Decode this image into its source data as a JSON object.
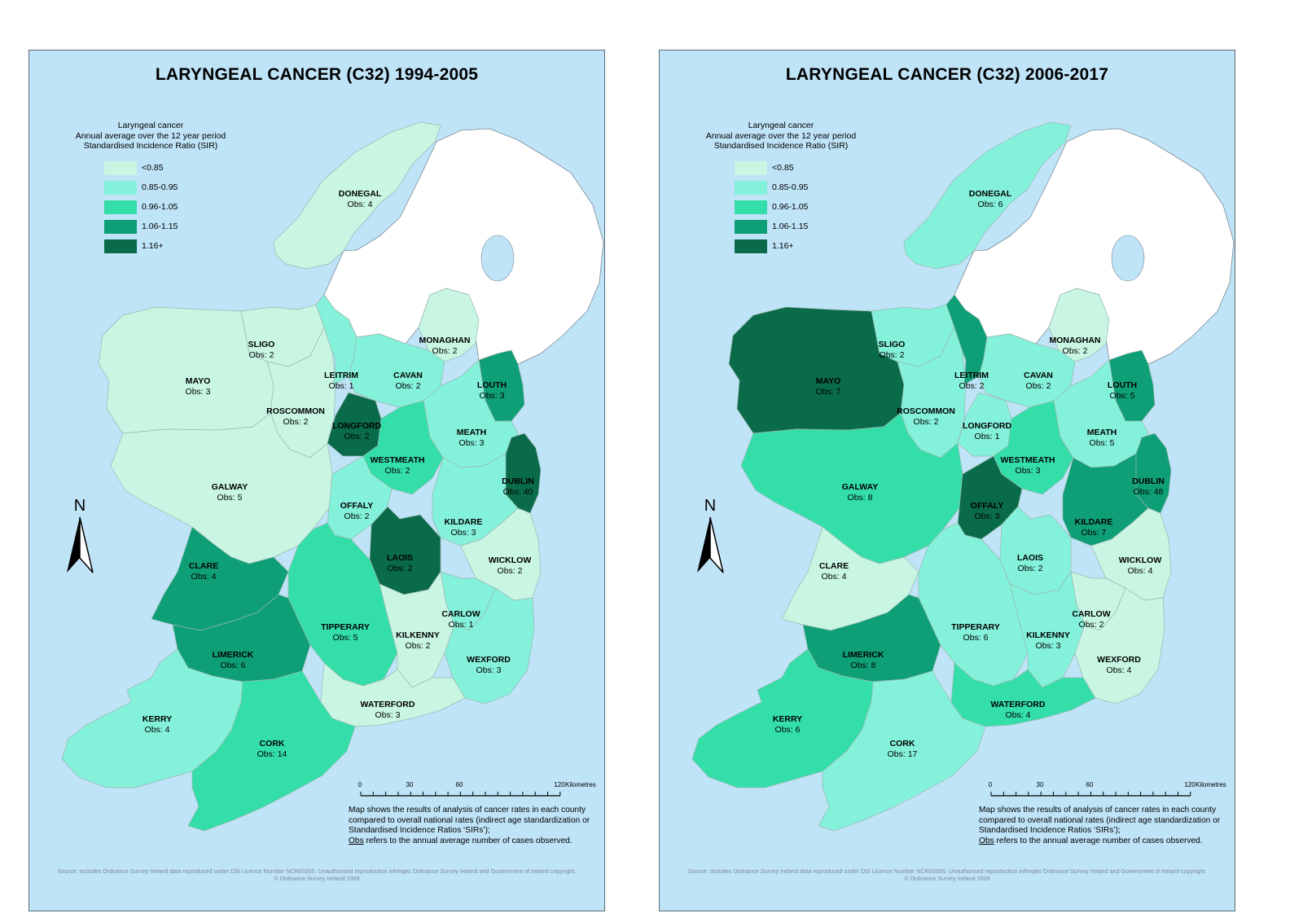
{
  "legend": {
    "heading": [
      "Laryngeal cancer",
      "Annual average over the 12 year period",
      "Standardised Incidence Ratio (SIR)"
    ],
    "classes": [
      {
        "label": "<0.85",
        "color": "#c8f6e3"
      },
      {
        "label": "0.85-0.95",
        "color": "#84f1da"
      },
      {
        "label": "0.96-1.05",
        "color": "#34dea9"
      },
      {
        "label": "1.06-1.15",
        "color": "#0f9f77"
      },
      {
        "label": "1.16+",
        "color": "#0a6b4b"
      }
    ]
  },
  "north_label": "N",
  "scale": {
    "ticks": [
      "0",
      "30",
      "60",
      "120"
    ],
    "unit": "Kilometres"
  },
  "note": {
    "text": "Map shows the results of analysis of cancer rates in each county compared to overall national rates (indirect age standardization or Standardised Incidence Ratios ‘SIRs’);",
    "obs_word": "Obs",
    "obs_rest": " refers to the annual average number of cases observed."
  },
  "source": [
    "Source: Includes Ordnance Survey Ireland data reproduced under OSi Licence Number NCRI/0305. Unauthorised reproduction infringes Ordnance Survey Ireland and Government of Ireland copyright.",
    "© Ordnance Survey Ireland 2009"
  ],
  "maps": [
    {
      "title": "LARYNGEAL CANCER (C32) 1994-2005",
      "counties": [
        {
          "name": "DONEGAL",
          "obs": "Obs: 4",
          "cls": 0
        },
        {
          "name": "SLIGO",
          "obs": "Obs: 2",
          "cls": 0
        },
        {
          "name": "MAYO",
          "obs": "Obs: 3",
          "cls": 0
        },
        {
          "name": "ROSCOMMON",
          "obs": "Obs: 2",
          "cls": 0
        },
        {
          "name": "GALWAY",
          "obs": "Obs: 5",
          "cls": 0
        },
        {
          "name": "LEITRIM",
          "obs": "Obs: 1",
          "cls": 1
        },
        {
          "name": "CAVAN",
          "obs": "Obs: 2",
          "cls": 1
        },
        {
          "name": "MONAGHAN",
          "obs": "Obs: 2",
          "cls": 0
        },
        {
          "name": "LOUTH",
          "obs": "Obs: 3",
          "cls": 3
        },
        {
          "name": "LONGFORD",
          "obs": "Obs: 2",
          "cls": 4
        },
        {
          "name": "MEATH",
          "obs": "Obs: 3",
          "cls": 1
        },
        {
          "name": "WESTMEATH",
          "obs": "Obs: 2",
          "cls": 2
        },
        {
          "name": "DUBLIN",
          "obs": "Obs: 40",
          "cls": 4
        },
        {
          "name": "OFFALY",
          "obs": "Obs: 2",
          "cls": 1
        },
        {
          "name": "KILDARE",
          "obs": "Obs: 3",
          "cls": 1
        },
        {
          "name": "LAOIS",
          "obs": "Obs: 2",
          "cls": 4
        },
        {
          "name": "WICKLOW",
          "obs": "Obs: 2",
          "cls": 0
        },
        {
          "name": "CLARE",
          "obs": "Obs: 4",
          "cls": 3
        },
        {
          "name": "CARLOW",
          "obs": "Obs: 1",
          "cls": 1
        },
        {
          "name": "TIPPERARY",
          "obs": "Obs: 5",
          "cls": 2
        },
        {
          "name": "KILKENNY",
          "obs": "Obs: 2",
          "cls": 0
        },
        {
          "name": "LIMERICK",
          "obs": "Obs: 6",
          "cls": 3
        },
        {
          "name": "WEXFORD",
          "obs": "Obs: 3",
          "cls": 1
        },
        {
          "name": "WATERFORD",
          "obs": "Obs: 3",
          "cls": 0
        },
        {
          "name": "KERRY",
          "obs": "Obs: 4",
          "cls": 1
        },
        {
          "name": "CORK",
          "obs": "Obs: 14",
          "cls": 2
        }
      ]
    },
    {
      "title": "LARYNGEAL CANCER (C32) 2006-2017",
      "counties": [
        {
          "name": "DONEGAL",
          "obs": "Obs: 6",
          "cls": 1
        },
        {
          "name": "SLIGO",
          "obs": "Obs: 2",
          "cls": 1
        },
        {
          "name": "MAYO",
          "obs": "Obs: 7",
          "cls": 4
        },
        {
          "name": "ROSCOMMON",
          "obs": "Obs: 2",
          "cls": 1
        },
        {
          "name": "GALWAY",
          "obs": "Obs: 8",
          "cls": 2
        },
        {
          "name": "LEITRIM",
          "obs": "Obs: 2",
          "cls": 3
        },
        {
          "name": "CAVAN",
          "obs": "Obs: 2",
          "cls": 1
        },
        {
          "name": "MONAGHAN",
          "obs": "Obs: 2",
          "cls": 0
        },
        {
          "name": "LOUTH",
          "obs": "Obs: 5",
          "cls": 3
        },
        {
          "name": "LONGFORD",
          "obs": "Obs: 1",
          "cls": 1
        },
        {
          "name": "MEATH",
          "obs": "Obs: 5",
          "cls": 1
        },
        {
          "name": "WESTMEATH",
          "obs": "Obs: 3",
          "cls": 2
        },
        {
          "name": "DUBLIN",
          "obs": "Obs: 48",
          "cls": 3
        },
        {
          "name": "OFFALY",
          "obs": "Obs: 3",
          "cls": 4
        },
        {
          "name": "KILDARE",
          "obs": "Obs: 7",
          "cls": 3
        },
        {
          "name": "LAOIS",
          "obs": "Obs: 2",
          "cls": 1
        },
        {
          "name": "WICKLOW",
          "obs": "Obs: 4",
          "cls": 0
        },
        {
          "name": "CLARE",
          "obs": "Obs: 4",
          "cls": 0
        },
        {
          "name": "CARLOW",
          "obs": "Obs: 2",
          "cls": 0
        },
        {
          "name": "TIPPERARY",
          "obs": "Obs: 6",
          "cls": 1
        },
        {
          "name": "KILKENNY",
          "obs": "Obs: 3",
          "cls": 1
        },
        {
          "name": "LIMERICK",
          "obs": "Obs: 8",
          "cls": 3
        },
        {
          "name": "WEXFORD",
          "obs": "Obs: 4",
          "cls": 0
        },
        {
          "name": "WATERFORD",
          "obs": "Obs: 4",
          "cls": 2
        },
        {
          "name": "KERRY",
          "obs": "Obs: 6",
          "cls": 2
        },
        {
          "name": "CORK",
          "obs": "Obs: 17",
          "cls": 1
        }
      ]
    }
  ]
}
